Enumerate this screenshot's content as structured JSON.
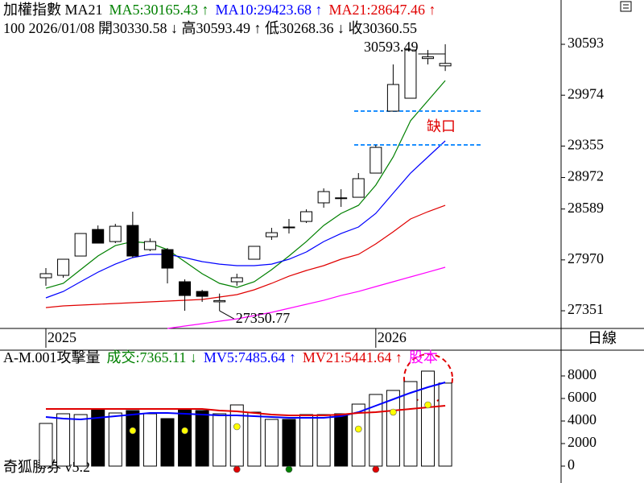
{
  "chart_data": [
    {
      "type": "candlestick",
      "title": "加權指數 MA21",
      "subtitle": "100 2026/01/08 開30330.58 ↓ 高30593.49 ↑ 低30268.36 ↓ 收30360.55",
      "categories": [
        "2025",
        null,
        null,
        null,
        null,
        null,
        null,
        null,
        null,
        null,
        null,
        null,
        null,
        null,
        null,
        null,
        null,
        null,
        null,
        "2026",
        null,
        null,
        null,
        null
      ],
      "open": [
        27753,
        27782,
        28017,
        28340,
        28193,
        28389,
        28095,
        28095,
        27704,
        27586,
        27460,
        27704,
        27978,
        28252,
        28370,
        28438,
        28664,
        28725,
        28732,
        29026,
        29780,
        29937,
        30420,
        30330.58
      ],
      "high": [
        27870,
        27978,
        28291,
        28389,
        28409,
        28556,
        28232,
        28115,
        27733,
        27606,
        27560,
        27802,
        28135,
        28360,
        28468,
        28585,
        28840,
        28830,
        29026,
        29369,
        30348,
        30524,
        30524,
        30593.49
      ],
      "low": [
        27655,
        27753,
        28017,
        28174,
        28174,
        27998,
        28076,
        27684,
        27351,
        27459,
        27350.77,
        27655,
        27978,
        28213,
        28291,
        28419,
        28605,
        28615,
        28732,
        29026,
        29780,
        29937,
        30348,
        30268.36
      ],
      "close": [
        27802,
        27978,
        28291,
        28174,
        28379,
        28017,
        28193,
        27870,
        27537,
        27527,
        27475,
        27753,
        28135,
        28301,
        28360,
        28556,
        28801,
        28720,
        28958,
        29339,
        30104,
        30524,
        30440,
        30360.55
      ],
      "up_color": "#ffffff",
      "down_color": "#000000",
      "series": [
        {
          "name": "MA5:30165.43 ↑",
          "color": "#008000",
          "values": [
            27625,
            27684,
            27851,
            28017,
            28144,
            28193,
            28174,
            28096,
            27949,
            27802,
            27684,
            27635,
            27704,
            27851,
            28017,
            28193,
            28389,
            28536,
            28634,
            28879,
            29222,
            29663,
            29907,
            30152
          ]
        },
        {
          "name": "MA10:29423.68 ↑",
          "color": "#0000ff",
          "values": [
            27508,
            27586,
            27704,
            27821,
            27919,
            27998,
            28037,
            28037,
            27998,
            27949,
            27919,
            27900,
            27900,
            27919,
            27978,
            28066,
            28193,
            28291,
            28370,
            28536,
            28781,
            29026,
            29222,
            29418
          ]
        },
        {
          "name": "MA21:28647.46 ↑",
          "color": "#e00000",
          "values": [
            27390,
            27410,
            27420,
            27430,
            27440,
            27449,
            27459,
            27469,
            27479,
            27489,
            27518,
            27547,
            27606,
            27684,
            27772,
            27841,
            27900,
            27978,
            28037,
            28164,
            28311,
            28468,
            28556,
            28634
          ]
        },
        {
          "color": "#ff00ff",
          "values": [
            null,
            null,
            null,
            null,
            null,
            null,
            null,
            27136,
            27165,
            27194,
            27224,
            27253,
            27292,
            27332,
            27381,
            27430,
            27478,
            27537,
            27586,
            27645,
            27704,
            27763,
            27821,
            27880
          ]
        }
      ],
      "ylim": [
        27136,
        31132
      ],
      "yticks": [
        30593,
        29974,
        29355,
        28972,
        28589,
        27970,
        27351
      ],
      "high_label": "30593.49",
      "low_label": "27350.77",
      "gap": {
        "label": "缺口",
        "label_color": "#e00000",
        "color": "#1e90ff",
        "values": [
          29780,
          29369
        ]
      },
      "period_label": "日線"
    },
    {
      "type": "volume",
      "title": "A-M.001攻擊量",
      "values_name": "成交:7365.11 ↓",
      "values_color": "#008000",
      "values": [
        3786,
        4643,
        4571,
        5071,
        4714,
        4929,
        4643,
        4214,
        5071,
        4929,
        4643,
        5429,
        4786,
        4143,
        4143,
        4571,
        4571,
        4643,
        5500,
        6357,
        6714,
        7500,
        8429,
        7365
      ],
      "series": [
        {
          "name": "MV5:7485.64 ↑",
          "color": "#0000ff",
          "values": [
            4357,
            4214,
            4143,
            4286,
            4429,
            4571,
            4714,
            4714,
            4643,
            4571,
            4500,
            4500,
            4429,
            4357,
            4286,
            4286,
            4286,
            4429,
            4786,
            5357,
            5929,
            6500,
            7000,
            7429
          ]
        },
        {
          "name": "MV21:5441.64 ↑",
          "color": "#e00000",
          "values": [
            5071,
            5071,
            5071,
            5071,
            5071,
            5071,
            5071,
            5071,
            5071,
            5071,
            4929,
            4857,
            4714,
            4571,
            4500,
            4500,
            4500,
            4571,
            4714,
            4786,
            4929,
            5071,
            5214,
            5357
          ]
        }
      ],
      "extra_legend": {
        "text": "股本",
        "color": "#ff00ff"
      },
      "markers": [
        {
          "color": "#ffff00",
          "values": [
            null,
            null,
            null,
            null,
            null,
            3143,
            null,
            null,
            3143,
            null,
            null,
            3500,
            null,
            null,
            null,
            null,
            null,
            null,
            3286,
            null,
            4786,
            null,
            5429,
            null
          ]
        },
        {
          "color": "#e00000",
          "values": [
            null,
            null,
            null,
            null,
            null,
            null,
            null,
            null,
            null,
            null,
            null,
            -286,
            null,
            null,
            null,
            null,
            null,
            null,
            null,
            -286,
            null,
            null,
            null,
            null
          ]
        },
        {
          "color": "#008000",
          "values": [
            null,
            null,
            null,
            null,
            null,
            null,
            null,
            null,
            null,
            null,
            null,
            null,
            null,
            null,
            -286,
            null,
            null,
            null,
            null,
            null,
            null,
            null,
            null,
            null
          ]
        }
      ],
      "ylim": [
        -1500,
        10143
      ],
      "yticks": [
        0,
        2000,
        4000,
        6000,
        8000
      ],
      "footer": "奇狐勝券 v5.2"
    }
  ]
}
